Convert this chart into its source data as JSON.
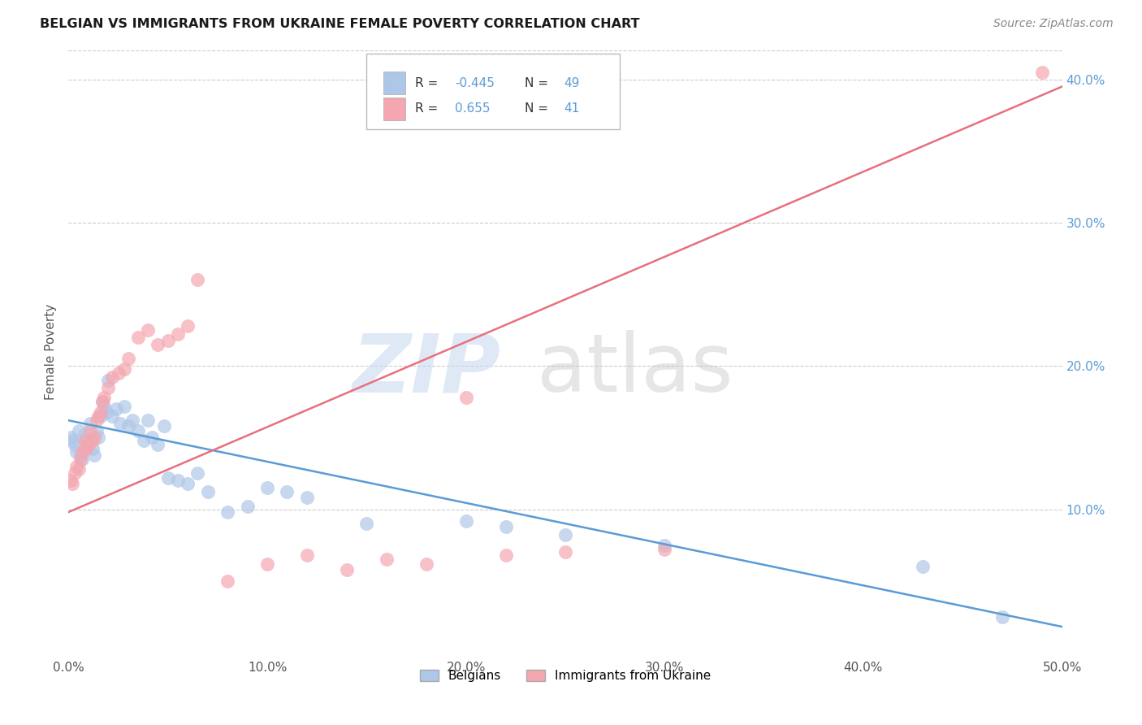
{
  "title": "BELGIAN VS IMMIGRANTS FROM UKRAINE FEMALE POVERTY CORRELATION CHART",
  "source": "Source: ZipAtlas.com",
  "ylabel": "Female Poverty",
  "xlim": [
    0.0,
    0.5
  ],
  "ylim": [
    0.0,
    0.42
  ],
  "xticks": [
    0.0,
    0.1,
    0.2,
    0.3,
    0.4,
    0.5
  ],
  "yticks": [
    0.1,
    0.2,
    0.3,
    0.4
  ],
  "ytick_labels": [
    "10.0%",
    "20.0%",
    "30.0%",
    "40.0%"
  ],
  "xtick_labels": [
    "0.0%",
    "10.0%",
    "20.0%",
    "30.0%",
    "40.0%",
    "50.0%"
  ],
  "belgians_R": -0.445,
  "belgians_N": 49,
  "ukraine_R": 0.655,
  "ukraine_N": 41,
  "belgian_color": "#aec6e8",
  "ukraine_color": "#f4a7b0",
  "belgian_line_color": "#5b9bd5",
  "ukraine_line_color": "#e8707e",
  "background_color": "#ffffff",
  "grid_color": "#cccccc",
  "legend_label_belgians": "Belgians",
  "legend_label_ukraine": "Immigrants from Ukraine",
  "belgians_x": [
    0.001,
    0.002,
    0.003,
    0.004,
    0.005,
    0.006,
    0.007,
    0.008,
    0.009,
    0.01,
    0.011,
    0.012,
    0.013,
    0.014,
    0.015,
    0.016,
    0.017,
    0.018,
    0.019,
    0.02,
    0.022,
    0.024,
    0.026,
    0.028,
    0.03,
    0.032,
    0.035,
    0.038,
    0.04,
    0.042,
    0.045,
    0.048,
    0.05,
    0.055,
    0.06,
    0.065,
    0.07,
    0.08,
    0.09,
    0.1,
    0.11,
    0.12,
    0.15,
    0.2,
    0.22,
    0.25,
    0.3,
    0.43,
    0.47
  ],
  "belgians_y": [
    0.15,
    0.148,
    0.145,
    0.14,
    0.155,
    0.138,
    0.135,
    0.152,
    0.148,
    0.145,
    0.16,
    0.142,
    0.138,
    0.155,
    0.15,
    0.165,
    0.175,
    0.172,
    0.168,
    0.19,
    0.165,
    0.17,
    0.16,
    0.172,
    0.158,
    0.162,
    0.155,
    0.148,
    0.162,
    0.15,
    0.145,
    0.158,
    0.122,
    0.12,
    0.118,
    0.125,
    0.112,
    0.098,
    0.102,
    0.115,
    0.112,
    0.108,
    0.09,
    0.092,
    0.088,
    0.082,
    0.075,
    0.06,
    0.025
  ],
  "ukraine_x": [
    0.001,
    0.002,
    0.003,
    0.004,
    0.005,
    0.006,
    0.007,
    0.008,
    0.009,
    0.01,
    0.011,
    0.012,
    0.013,
    0.014,
    0.015,
    0.016,
    0.017,
    0.018,
    0.02,
    0.022,
    0.025,
    0.028,
    0.03,
    0.035,
    0.04,
    0.045,
    0.05,
    0.055,
    0.06,
    0.065,
    0.08,
    0.1,
    0.12,
    0.14,
    0.16,
    0.18,
    0.2,
    0.22,
    0.25,
    0.3,
    0.49
  ],
  "ukraine_y": [
    0.12,
    0.118,
    0.125,
    0.13,
    0.128,
    0.135,
    0.14,
    0.148,
    0.142,
    0.145,
    0.155,
    0.148,
    0.15,
    0.162,
    0.165,
    0.168,
    0.175,
    0.178,
    0.185,
    0.192,
    0.195,
    0.198,
    0.205,
    0.22,
    0.225,
    0.215,
    0.218,
    0.222,
    0.228,
    0.26,
    0.05,
    0.062,
    0.068,
    0.058,
    0.065,
    0.062,
    0.178,
    0.068,
    0.07,
    0.072,
    0.405
  ],
  "belgian_line_x0": 0.0,
  "belgian_line_y0": 0.162,
  "belgian_line_x1": 0.5,
  "belgian_line_y1": 0.018,
  "ukraine_line_x0": 0.0,
  "ukraine_line_y0": 0.098,
  "ukraine_line_x1": 0.5,
  "ukraine_line_y1": 0.395
}
